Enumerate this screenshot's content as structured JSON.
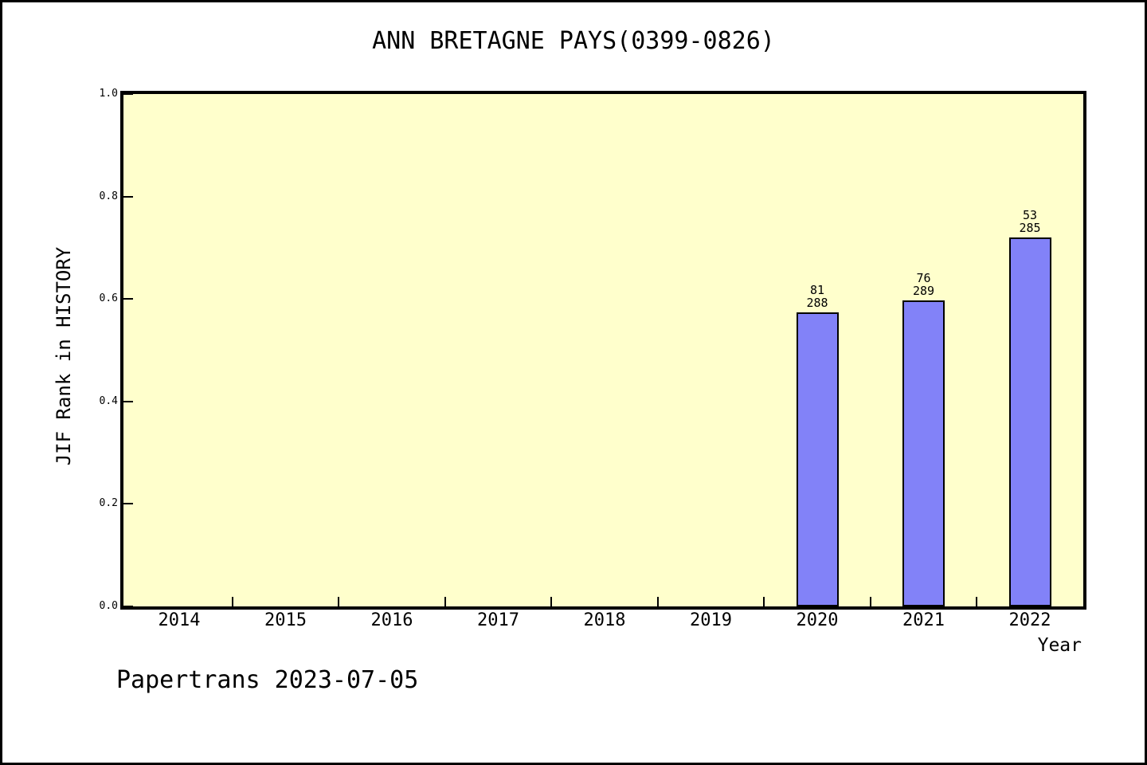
{
  "window": {
    "background": "#ffffff",
    "border_color": "#000000"
  },
  "chart": {
    "title": "ANN BRETAGNE PAYS(0399-0826)",
    "ylabel": "JIF Rank in HISTORY",
    "xlabel": "Year",
    "footer": "Papertrans 2023-07-05"
  },
  "chart_data": {
    "type": "bar",
    "title": "ANN BRETAGNE PAYS(0399-0826)",
    "xlabel": "Year",
    "ylabel": "JIF Rank in HISTORY",
    "categories": [
      "2014",
      "2015",
      "2016",
      "2017",
      "2018",
      "2019",
      "2020",
      "2021",
      "2022"
    ],
    "ylim": [
      0.0,
      1.0
    ],
    "y_ticks": [
      "0.0",
      "0.2",
      "0.4",
      "0.6",
      "0.8",
      "1.0"
    ],
    "grid": false,
    "legend": "none",
    "plot_background": "#ffffcc",
    "bar_color": "#8282f8",
    "bar_border_color": "#000000",
    "bars": [
      {
        "category": "2020",
        "value": 0.574,
        "label_line1": "81",
        "label_line2": "288"
      },
      {
        "category": "2021",
        "value": 0.597,
        "label_line1": "76",
        "label_line2": "289"
      },
      {
        "category": "2022",
        "value": 0.72,
        "label_line1": "53",
        "label_line2": "285"
      }
    ],
    "footnote": "Papertrans 2023-07-05"
  }
}
